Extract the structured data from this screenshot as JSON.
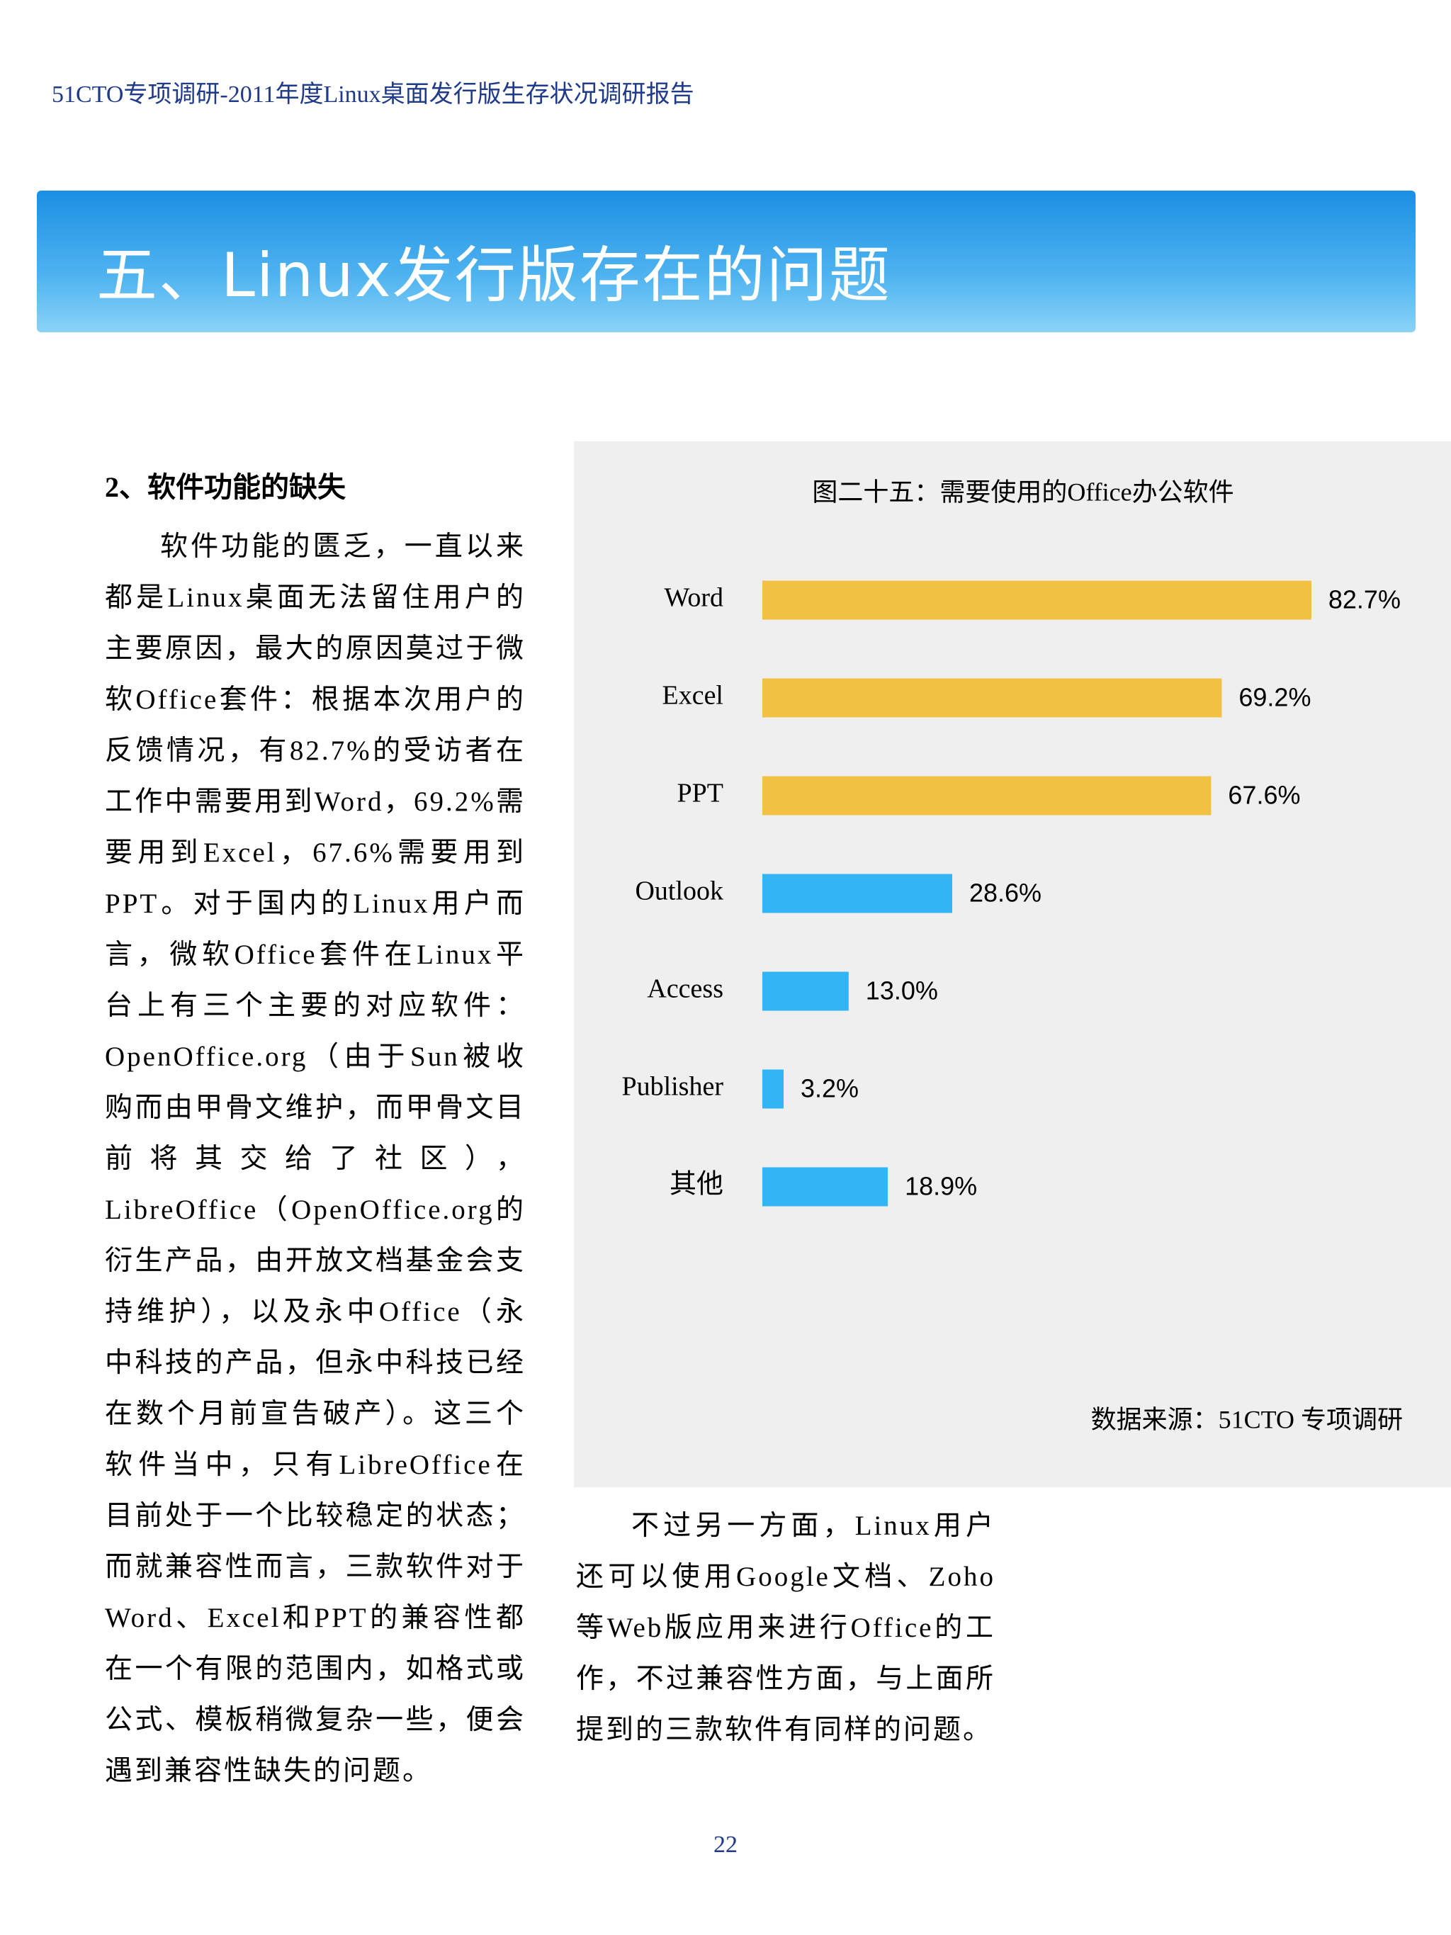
{
  "header": "51CTO专项调研-2011年度Linux桌面发行版生存状况调研报告",
  "section_title": "五、Linux发行版存在的问题",
  "subheading": "2、软件功能的缺失",
  "left_paragraph": "软件功能的匮乏，一直以来都是Linux桌面无法留住用户的主要原因，最大的原因莫过于微软Office套件：根据本次用户的反馈情况，有82.7%的受访者在工作中需要用到Word，69.2%需要用到Excel，67.6%需要用到PPT。对于国内的Linux用户而言，微软Office套件在Linux平台上有三个主要的对应软件：OpenOffice.org（由于Sun被收购而由甲骨文维护，而甲骨文目前将其交给了社区），LibreOffice（OpenOffice.org的衍生产品，由开放文档基金会支持维护），以及永中Office（永中科技的产品，但永中科技已经在数个月前宣告破产）。这三个软件当中，只有LibreOffice在目前处于一个比较稳定的状态；而就兼容性而言，三款软件对于Word、Excel和PPT的兼容性都在一个有限的范围内，如格式或公式、模板稍微复杂一些，便会遇到兼容性缺失的问题。",
  "right_paragraph": "不过另一方面，Linux用户还可以使用Google文档、Zoho等Web版应用来进行Office的工作，不过兼容性方面，与上面所提到的三款软件有同样的问题。",
  "page_number": "22",
  "chart_data": {
    "type": "bar",
    "orientation": "horizontal",
    "title": "图二十五：需要使用的Office办公软件",
    "categories": [
      "Word",
      "Excel",
      "PPT",
      "Outlook",
      "Access",
      "Publisher",
      "其他"
    ],
    "values": [
      82.7,
      69.2,
      67.6,
      28.6,
      13.0,
      3.2,
      18.9
    ],
    "value_labels": [
      "82.7%",
      "69.2%",
      "67.6%",
      "28.6%",
      "13.0%",
      "3.2%",
      "18.9%"
    ],
    "colors": [
      "#f2c042",
      "#f2c042",
      "#f2c042",
      "#33b5f5",
      "#33b5f5",
      "#33b5f5",
      "#33b5f5"
    ],
    "source": "数据来源：51CTO 专项调研"
  }
}
